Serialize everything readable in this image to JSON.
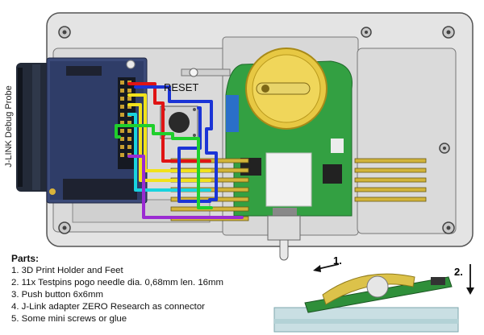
{
  "labels": {
    "probe": "J-LINK Debug Probe",
    "reset": "RESET"
  },
  "parts": {
    "title": "Parts:",
    "items": [
      "1. 3D Print Holder and Feet",
      "2. 11x Testpins pogo needle dia. 0,68mm len. 16mm",
      "3. Push button 6x6mm",
      "4. J-Link adapter ZERO Research as connector",
      "5. Some mini screws or glue"
    ]
  },
  "steps": {
    "step1": "1.",
    "step2": "2."
  },
  "colors": {
    "holder": "#e3e3e3",
    "pcb_green": "#33a042",
    "probe_dark": "#232a38",
    "jlink_board": "#3b4a78",
    "battery": "#e7c843",
    "wire_red": "#e01414",
    "wire_yellow": "#f1e21b",
    "wire_cyan": "#18d3df",
    "wire_blue": "#1b34d6",
    "wire_green": "#1fcf2c",
    "wire_purple": "#9b2bd2",
    "pin_gold": "#d2b43a"
  }
}
